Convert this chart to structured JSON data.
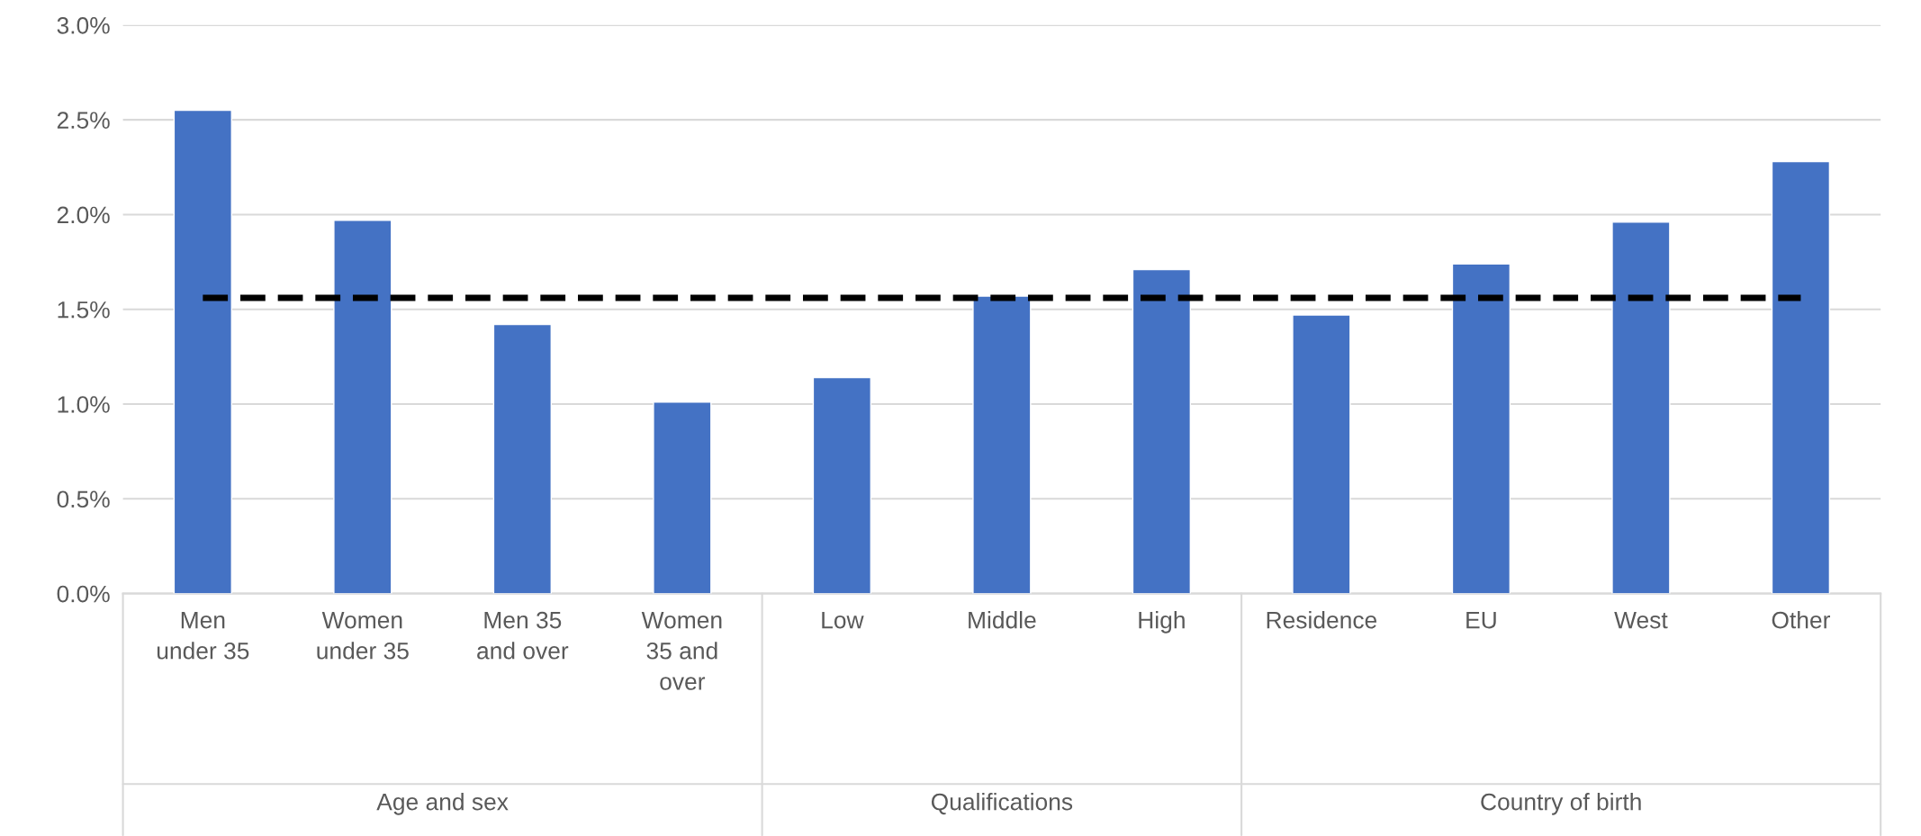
{
  "chart_data": {
    "type": "bar",
    "categories": [
      "Men\nunder 35",
      "Women\nunder 35",
      "Men 35\nand over",
      "Women\n35 and\nover",
      "Low",
      "Middle",
      "High",
      "Residence",
      "EU",
      "West",
      "Other"
    ],
    "values": [
      2.55,
      1.97,
      1.42,
      1.01,
      1.14,
      1.57,
      1.71,
      1.47,
      1.74,
      1.96,
      2.28
    ],
    "color": "#4472c4",
    "ylim": [
      0,
      3
    ],
    "yticks": [
      {
        "value": 0,
        "label": "0.0%"
      },
      {
        "value": 0.5,
        "label": "0.5%"
      },
      {
        "value": 1,
        "label": "1.0%"
      },
      {
        "value": 1.5,
        "label": "1.5%"
      },
      {
        "value": 2,
        "label": "2.0%"
      },
      {
        "value": 2.5,
        "label": "2.5%"
      },
      {
        "value": 3,
        "label": "3.0%"
      }
    ],
    "grid": "y",
    "ref_lines": [
      {
        "axis": "y",
        "value": 1.56,
        "color": "#000000",
        "line_style": "dashed"
      }
    ],
    "annotations": [
      "Age and sex",
      "Qualifications",
      "Country of birth"
    ]
  }
}
